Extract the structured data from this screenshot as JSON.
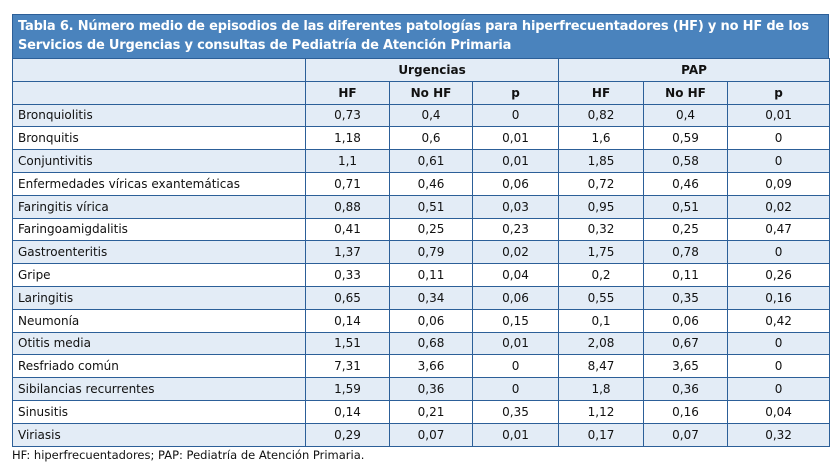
{
  "title": "Tabla 6. Número medio de episodios de las diferentes patologías para hiperfrecuentadores (HF) y no HF de los Servicios de Urgencias y consultas de Pediatría de Atención Primaria",
  "groups": [
    "Urgencias",
    "PAP"
  ],
  "subheaders": [
    "HF",
    "No HF",
    "p",
    "HF",
    "No HF",
    "p"
  ],
  "rows": [
    {
      "label": "Bronquiolitis",
      "values": [
        "0,73",
        "0,4",
        "0",
        "0,82",
        "0,4",
        "0,01"
      ]
    },
    {
      "label": "Bronquitis",
      "values": [
        "1,18",
        "0,6",
        "0,01",
        "1,6",
        "0,59",
        "0"
      ]
    },
    {
      "label": "Conjuntivitis",
      "values": [
        "1,1",
        "0,61",
        "0,01",
        "1,85",
        "0,58",
        "0"
      ]
    },
    {
      "label": "Enfermedades víricas exantemáticas",
      "values": [
        "0,71",
        "0,46",
        "0,06",
        "0,72",
        "0,46",
        "0,09"
      ]
    },
    {
      "label": "Faringitis vírica",
      "values": [
        "0,88",
        "0,51",
        "0,03",
        "0,95",
        "0,51",
        "0,02"
      ]
    },
    {
      "label": "Faringoamigdalitis",
      "values": [
        "0,41",
        "0,25",
        "0,23",
        "0,32",
        "0,25",
        "0,47"
      ]
    },
    {
      "label": "Gastroenteritis",
      "values": [
        "1,37",
        "0,79",
        "0,02",
        "1,75",
        "0,78",
        "0"
      ]
    },
    {
      "label": "Gripe",
      "values": [
        "0,33",
        "0,11",
        "0,04",
        "0,2",
        "0,11",
        "0,26"
      ]
    },
    {
      "label": "Laringitis",
      "values": [
        "0,65",
        "0,34",
        "0,06",
        "0,55",
        "0,35",
        "0,16"
      ]
    },
    {
      "label": "Neumonía",
      "values": [
        "0,14",
        "0,06",
        "0,15",
        "0,1",
        "0,06",
        "0,42"
      ]
    },
    {
      "label": "Otitis media",
      "values": [
        "1,51",
        "0,68",
        "0,01",
        "2,08",
        "0,67",
        "0"
      ]
    },
    {
      "label": "Resfriado común",
      "values": [
        "7,31",
        "3,66",
        "0",
        "8,47",
        "3,65",
        "0"
      ]
    },
    {
      "label": "Sibilancias recurrentes",
      "values": [
        "1,59",
        "0,36",
        "0",
        "1,8",
        "0,36",
        "0"
      ]
    },
    {
      "label": "Sinusitis",
      "values": [
        "0,14",
        "0,21",
        "0,35",
        "1,12",
        "0,16",
        "0,04"
      ]
    },
    {
      "label": "Viriasis",
      "values": [
        "0,29",
        "0,07",
        "0,01",
        "0,17",
        "0,07",
        "0,32"
      ]
    }
  ],
  "footnote": "HF: hiperfrecuentadores; PAP: Pediatría de Atención Primaria.",
  "colors": {
    "title_bg": "#4a83bd",
    "border": "#2c5f98",
    "stripe": "#e3ecf6"
  }
}
